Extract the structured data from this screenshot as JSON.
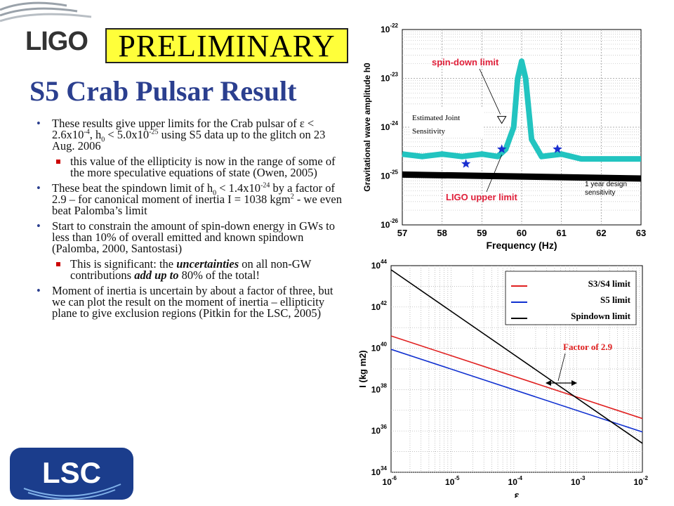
{
  "header": {
    "logo_text": "LIGO",
    "preliminary": "PRELIMINARY",
    "title": "S5 Crab Pulsar Result"
  },
  "bullets": [
    {
      "level": 1,
      "parts": [
        "These results give upper limits for the Crab pulsar of ε < 2.6x10",
        "-4",
        ", h",
        "0",
        " < 5.0x10",
        "-25",
        " using S5 data up to the glitch on 23 Aug. 2006"
      ]
    },
    {
      "level": 2,
      "text": "this value of the ellipticity is now in the range of some of the more speculative equations of state (Owen, 2005)"
    },
    {
      "level": 1,
      "parts": [
        "These beat the spindown limit of h",
        "0",
        " < 1.4x10",
        "-24",
        " by a factor of 2.9 – for canonical moment of inertia I = 10",
        "38",
        " kgm",
        "2",
        " - we even beat Palomba’s limit"
      ]
    },
    {
      "level": 1,
      "text": "Start to constrain the amount of spin-down energy in GWs to less than 10% of overall emitted and known  spindown (Palomba, 2000, Santostasi)"
    },
    {
      "level": 2,
      "parts": [
        "This is significant: the ",
        "uncertainties",
        " on all non-GW contributions ",
        "add up to",
        " 80% of the total!"
      ]
    },
    {
      "level": 1,
      "text": "Moment of inertia is uncertain by about a factor of three, but we can plot the result on the moment of inertia – ellipticity plane to give exclusion regions (Pitkin for the LSC, 2005)"
    }
  ],
  "footer": {
    "lsc_logo_text": "LSC"
  },
  "chart_data": [
    {
      "type": "line",
      "xlabel": "Frequency (Hz)",
      "ylabel": "Gravitational wave amplitude h0",
      "xlim": [
        57,
        63
      ],
      "ylim_exp": [
        -26,
        -22
      ],
      "yscale": "log",
      "x_ticks": [
        "57",
        "58",
        "59",
        "60",
        "61",
        "62",
        "63"
      ],
      "y_tick_exps": [
        "-22",
        "-23",
        "-24",
        "-25",
        "-26"
      ],
      "grid": true,
      "series": [
        {
          "color": "#22c4c0",
          "x": [
            57.0,
            57.5,
            58.0,
            58.5,
            59.0,
            59.4,
            59.6,
            59.8,
            59.9,
            60.0,
            60.1,
            60.25,
            60.5,
            61.0,
            61.5,
            62.0,
            62.5,
            63.0
          ],
          "log_y": [
            -24.55,
            -24.6,
            -24.55,
            -24.6,
            -24.55,
            -24.6,
            -24.45,
            -24.0,
            -23.0,
            -22.65,
            -23.0,
            -24.25,
            -24.6,
            -24.55,
            -24.65,
            -24.65,
            -24.65,
            -24.65
          ]
        },
        {
          "color": "#000000",
          "x": [
            57.0,
            63.0
          ],
          "log_y": [
            -24.97,
            -25.05
          ]
        }
      ],
      "markers": [
        {
          "x": 58.6,
          "log_y": -24.75
        },
        {
          "x": 59.5,
          "log_y": -24.45
        },
        {
          "x": 60.9,
          "log_y": -24.45
        }
      ],
      "spindown_marker": {
        "x": 59.5,
        "log_y": -23.85
      },
      "annotations": {
        "spin_down": "spin-down limit",
        "ligo_upper": "LIGO upper limit",
        "design_line1": "1 year design",
        "design_line2": "sensitivity",
        "joint_line1": "Estimated Joint",
        "joint_line2": "Sensitivity"
      }
    },
    {
      "type": "line",
      "xlabel": "ε",
      "ylabel": "I (kg m2)",
      "xscale": "log",
      "yscale": "log",
      "x_exp_range": [
        -6,
        -2
      ],
      "y_exp_range": [
        34,
        44
      ],
      "x_tick_exps": [
        "-6",
        "-5",
        "-4",
        "-3",
        "-2"
      ],
      "y_tick_exps": [
        "44",
        "42",
        "40",
        "38",
        "36",
        "34"
      ],
      "grid": true,
      "series": [
        {
          "name": "S3/S4 limit",
          "color": "#e02020",
          "log_x": [
            -6,
            -2
          ],
          "log_y": [
            40.6,
            36.6
          ]
        },
        {
          "name": "S5 limit",
          "color": "#1030d0",
          "log_x": [
            -6,
            -2
          ],
          "log_y": [
            39.95,
            35.95
          ]
        },
        {
          "name": "Spindown limit",
          "color": "#000000",
          "log_x": [
            -6,
            -2
          ],
          "log_y": [
            43.8,
            35.4
          ]
        }
      ],
      "legend": [
        "S3/S4 limit",
        "S5 limit",
        "Spindown limit"
      ],
      "legend_position": "top-right",
      "annotation": "Factor of 2.9"
    }
  ]
}
